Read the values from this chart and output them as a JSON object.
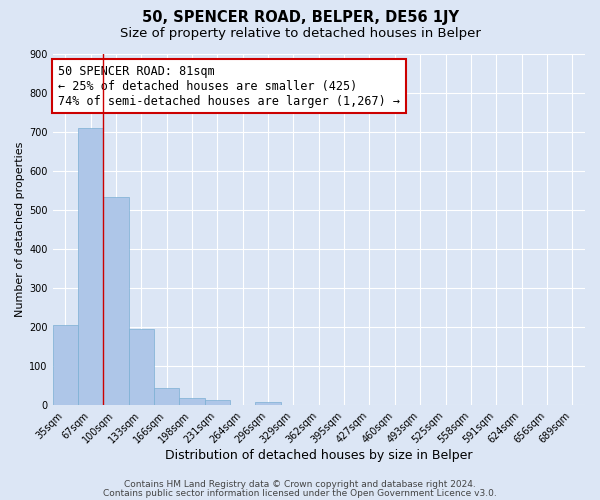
{
  "title": "50, SPENCER ROAD, BELPER, DE56 1JY",
  "subtitle": "Size of property relative to detached houses in Belper",
  "xlabel": "Distribution of detached houses by size in Belper",
  "ylabel": "Number of detached properties",
  "bar_labels": [
    "35sqm",
    "67sqm",
    "100sqm",
    "133sqm",
    "166sqm",
    "198sqm",
    "231sqm",
    "264sqm",
    "296sqm",
    "329sqm",
    "362sqm",
    "395sqm",
    "427sqm",
    "460sqm",
    "493sqm",
    "525sqm",
    "558sqm",
    "591sqm",
    "624sqm",
    "656sqm",
    "689sqm"
  ],
  "bar_values": [
    205,
    710,
    535,
    195,
    45,
    20,
    15,
    0,
    10,
    0,
    0,
    0,
    0,
    0,
    0,
    0,
    0,
    0,
    0,
    0,
    0
  ],
  "bar_color": "#aec6e8",
  "bar_edge_color": "#7bafd4",
  "background_color": "#dce6f5",
  "grid_color": "#ffffff",
  "vline_color": "#cc0000",
  "vline_x": 1.5,
  "annotation_title": "50 SPENCER ROAD: 81sqm",
  "annotation_line1": "← 25% of detached houses are smaller (425)",
  "annotation_line2": "74% of semi-detached houses are larger (1,267) →",
  "annotation_box_color": "#ffffff",
  "annotation_box_edge": "#cc0000",
  "ylim": [
    0,
    900
  ],
  "yticks": [
    0,
    100,
    200,
    300,
    400,
    500,
    600,
    700,
    800,
    900
  ],
  "footnote1": "Contains HM Land Registry data © Crown copyright and database right 2024.",
  "footnote2": "Contains public sector information licensed under the Open Government Licence v3.0.",
  "title_fontsize": 10.5,
  "subtitle_fontsize": 9.5,
  "xlabel_fontsize": 9,
  "ylabel_fontsize": 8,
  "tick_fontsize": 7,
  "annot_title_fontsize": 8.5,
  "annot_body_fontsize": 8.5,
  "footnote_fontsize": 6.5
}
